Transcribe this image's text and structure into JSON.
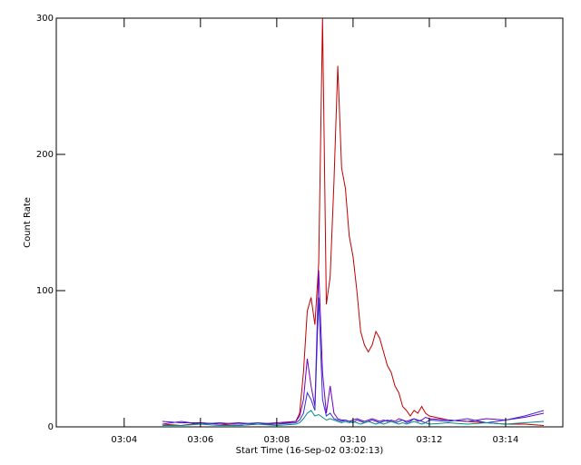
{
  "chart_data": {
    "type": "line",
    "x_label": "Start Time (16-Sep-02 03:02:13)",
    "y_label": "Count Rate",
    "xlim": [
      2.22,
      15.5
    ],
    "xticks": [
      {
        "value": 4,
        "label": "03:04"
      },
      {
        "value": 6,
        "label": "03:06"
      },
      {
        "value": 8,
        "label": "03:08"
      },
      {
        "value": 10,
        "label": "03:10"
      },
      {
        "value": 12,
        "label": "03:12"
      },
      {
        "value": 14,
        "label": "03:14"
      }
    ],
    "ylim": [
      0,
      300
    ],
    "yticks": [
      0,
      100,
      200,
      300
    ],
    "x": [
      5,
      5.5,
      6,
      6.5,
      7,
      7.5,
      8,
      8.5,
      8.6,
      8.7,
      8.8,
      8.9,
      9,
      9.1,
      9.2,
      9.3,
      9.4,
      9.5,
      9.6,
      9.7,
      9.8,
      9.9,
      10,
      10.1,
      10.2,
      10.3,
      10.4,
      10.5,
      10.6,
      10.7,
      10.8,
      10.9,
      11,
      11.1,
      11.2,
      11.3,
      11.4,
      11.5,
      11.6,
      11.7,
      11.8,
      11.9,
      12,
      12.5,
      13,
      13.5,
      14,
      14.5,
      15
    ],
    "series": [
      {
        "color": "#c00000",
        "values": [
          2,
          1,
          3,
          2,
          1,
          2,
          2,
          4,
          10,
          40,
          85,
          95,
          75,
          120,
          300,
          90,
          110,
          180,
          265,
          190,
          175,
          140,
          125,
          100,
          70,
          60,
          55,
          60,
          70,
          65,
          55,
          45,
          40,
          30,
          25,
          15,
          12,
          8,
          12,
          10,
          15,
          10,
          8,
          5,
          4,
          3,
          2,
          2,
          1
        ]
      },
      {
        "color": "#7000c0",
        "values": [
          4,
          3,
          3,
          2,
          3,
          2,
          3,
          4,
          8,
          20,
          50,
          30,
          15,
          115,
          40,
          10,
          30,
          10,
          6,
          5,
          5,
          4,
          5,
          6,
          5,
          4,
          5,
          6,
          5,
          4,
          5,
          4,
          5,
          4,
          6,
          5,
          4,
          5,
          6,
          4,
          5,
          7,
          6,
          5,
          4,
          6,
          5,
          7,
          10
        ]
      },
      {
        "color": "#3030d0",
        "values": [
          2,
          4,
          2,
          3,
          2,
          3,
          2,
          3,
          5,
          10,
          25,
          20,
          12,
          95,
          20,
          8,
          10,
          6,
          5,
          4,
          5,
          4,
          3,
          5,
          4,
          3,
          4,
          5,
          4,
          3,
          4,
          5,
          4,
          3,
          4,
          5,
          3,
          4,
          6,
          5,
          4,
          3,
          5,
          4,
          6,
          3,
          5,
          8,
          12
        ]
      },
      {
        "color": "#008c8c",
        "values": [
          1,
          1,
          2,
          1,
          1,
          2,
          1,
          2,
          3,
          6,
          10,
          12,
          8,
          9,
          7,
          5,
          6,
          5,
          4,
          3,
          4,
          3,
          4,
          3,
          2,
          3,
          4,
          3,
          2,
          3,
          2,
          3,
          4,
          3,
          2,
          3,
          2,
          3,
          4,
          3,
          2,
          3,
          2,
          3,
          2,
          3,
          2,
          3,
          4
        ]
      }
    ]
  }
}
